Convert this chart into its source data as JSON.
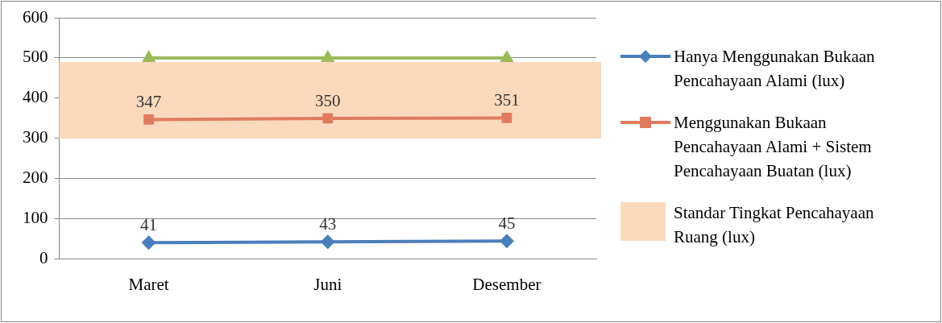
{
  "chart_data": {
    "type": "line",
    "categories": [
      "Maret",
      "Juni",
      "Desember"
    ],
    "series": [
      {
        "name": "Hanya Menggunakan Bukaan Pencahayaan Alami (lux)",
        "color": "#4a7ebb",
        "values": [
          41,
          43,
          45
        ],
        "marker": "diamond",
        "value_labels": [
          "41",
          "43",
          "45"
        ]
      },
      {
        "name": "Menggunakan Bukaan Pencahayaan Alami + Sistem Pencahayaan Buatan (lux)",
        "color": "#e07b5f",
        "values": [
          347,
          350,
          351
        ],
        "marker": "square",
        "value_labels": [
          "347",
          "350",
          "351"
        ]
      },
      {
        "color": "#9bbb59",
        "values": [
          500,
          500,
          500
        ],
        "marker": "triangle"
      }
    ],
    "bands": [
      {
        "axis": "y",
        "from": 300,
        "to": 490,
        "label": "Standar Tingkat Pencahayaan Ruang (lux)",
        "color": "#fbd9bd"
      }
    ],
    "ylim": [
      0,
      600
    ],
    "yticks": [
      0,
      100,
      200,
      300,
      400,
      500,
      600
    ],
    "grid": "y",
    "legend": "right"
  }
}
